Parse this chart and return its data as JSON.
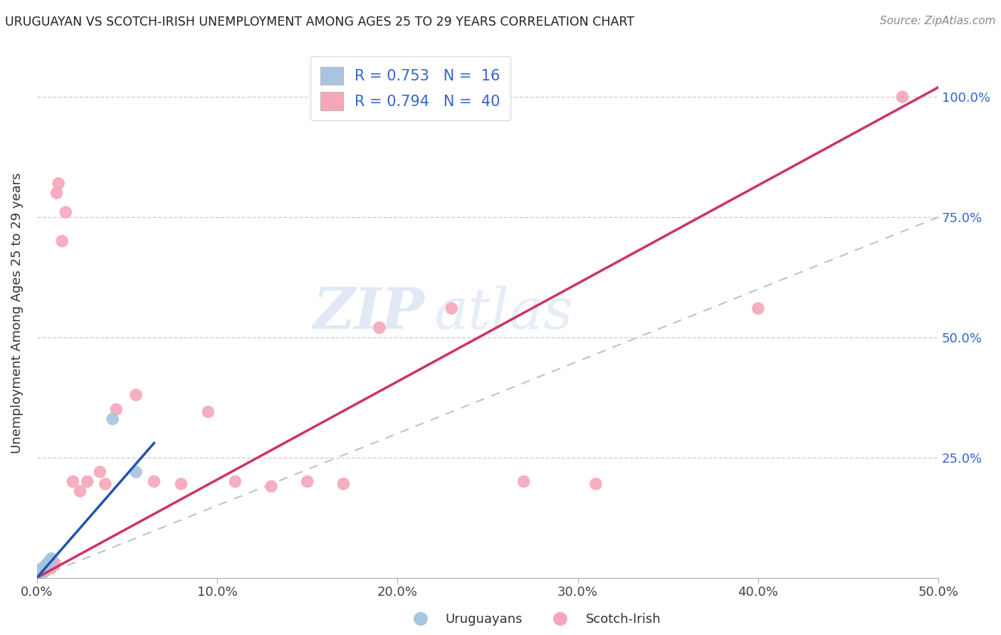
{
  "title": "URUGUAYAN VS SCOTCH-IRISH UNEMPLOYMENT AMONG AGES 25 TO 29 YEARS CORRELATION CHART",
  "source": "Source: ZipAtlas.com",
  "ylabel": "Unemployment Among Ages 25 to 29 years",
  "xlim": [
    0.0,
    0.5
  ],
  "ylim": [
    0.0,
    1.1
  ],
  "xtick_labels": [
    "0.0%",
    "10.0%",
    "20.0%",
    "30.0%",
    "40.0%",
    "50.0%"
  ],
  "xtick_values": [
    0.0,
    0.1,
    0.2,
    0.3,
    0.4,
    0.5
  ],
  "ytick_labels": [
    "25.0%",
    "50.0%",
    "75.0%",
    "100.0%"
  ],
  "ytick_values": [
    0.25,
    0.5,
    0.75,
    1.0
  ],
  "uruguayan_color": "#a8c4e0",
  "scotch_irish_color": "#f4a7b9",
  "uruguayan_line_color": "#2255aa",
  "scotch_irish_line_color": "#cc3366",
  "ref_line_color": "#b8c4d8",
  "legend_R1": "R = 0.753",
  "legend_N1": "N =  16",
  "legend_R2": "R = 0.794",
  "legend_N2": "N =  40",
  "watermark_zip": "ZIP",
  "watermark_atlas": "atlas",
  "background_color": "#ffffff",
  "grid_color": "#ccccdd",
  "uruguayan_line_x": [
    0.0,
    0.065
  ],
  "uruguayan_line_y": [
    0.0,
    0.28
  ],
  "scotch_irish_line_x": [
    0.0,
    0.5
  ],
  "scotch_irish_line_y": [
    0.0,
    1.02
  ],
  "ref_line_x": [
    0.0,
    0.5
  ],
  "ref_line_y": [
    0.0,
    0.75
  ],
  "uru_x": [
    0.0,
    0.001,
    0.001,
    0.002,
    0.002,
    0.003,
    0.003,
    0.003,
    0.004,
    0.004,
    0.005,
    0.006,
    0.007,
    0.008,
    0.042,
    0.055
  ],
  "uru_y": [
    0.003,
    0.005,
    0.01,
    0.008,
    0.012,
    0.01,
    0.015,
    0.02,
    0.018,
    0.022,
    0.025,
    0.03,
    0.035,
    0.04,
    0.33,
    0.22
  ],
  "si_x": [
    0.0,
    0.001,
    0.001,
    0.002,
    0.002,
    0.003,
    0.003,
    0.004,
    0.004,
    0.005,
    0.005,
    0.006,
    0.007,
    0.008,
    0.009,
    0.01,
    0.011,
    0.012,
    0.014,
    0.016,
    0.02,
    0.024,
    0.028,
    0.035,
    0.038,
    0.044,
    0.055,
    0.065,
    0.08,
    0.095,
    0.11,
    0.13,
    0.15,
    0.17,
    0.19,
    0.23,
    0.27,
    0.31,
    0.4,
    0.48
  ],
  "si_y": [
    0.003,
    0.005,
    0.012,
    0.008,
    0.015,
    0.01,
    0.018,
    0.012,
    0.02,
    0.015,
    0.025,
    0.018,
    0.022,
    0.02,
    0.025,
    0.03,
    0.8,
    0.82,
    0.7,
    0.76,
    0.2,
    0.18,
    0.2,
    0.22,
    0.195,
    0.35,
    0.38,
    0.2,
    0.195,
    0.345,
    0.2,
    0.19,
    0.2,
    0.195,
    0.52,
    0.56,
    0.2,
    0.195,
    0.56,
    1.0
  ]
}
